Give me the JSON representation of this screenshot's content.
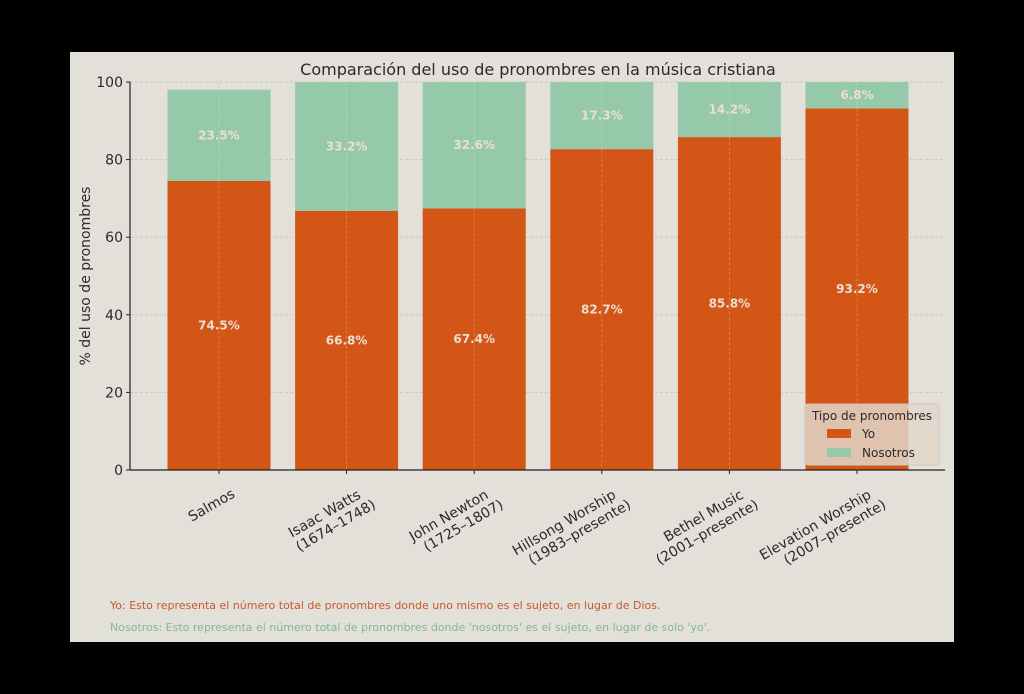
{
  "chart_data": {
    "type": "bar",
    "stacked": true,
    "title": "Comparación del uso de pronombres en la música cristiana",
    "xlabel": "",
    "ylabel": "% del uso de pronombres",
    "ylim": [
      0,
      100
    ],
    "yticks": [
      0,
      20,
      40,
      60,
      80,
      100
    ],
    "grid": true,
    "categories": [
      [
        "Salmos"
      ],
      [
        "Isaac Watts",
        "(1674–1748)"
      ],
      [
        "John Newton",
        "(1725–1807)"
      ],
      [
        "Hillsong Worship",
        "(1983–presente)"
      ],
      [
        "Bethel Music",
        "(2001–presente)"
      ],
      [
        "Elevation Worship",
        "(2007–presente)"
      ]
    ],
    "series": [
      {
        "name": "Yo",
        "color": "#d45617",
        "values": [
          74.5,
          66.8,
          67.4,
          82.7,
          85.8,
          93.2
        ]
      },
      {
        "name": "Nosotros",
        "color": "#95c9a9",
        "values": [
          23.5,
          33.2,
          32.6,
          17.3,
          14.2,
          6.8
        ]
      }
    ],
    "legend": {
      "title": "Tipo de pronombres",
      "position": "bottom-right"
    },
    "label_color": "#eadfd2"
  },
  "notes": [
    {
      "text": "Yo: Esto representa el número total de pronombres donde uno mismo es el sujeto, en lugar de Dios.",
      "color": "#c9582a"
    },
    {
      "text": "Nosotros: Esto representa el número total de pronombres donde 'nosotros' es el sujeto, en lugar de solo 'yo'.",
      "color": "#7fb995"
    }
  ]
}
